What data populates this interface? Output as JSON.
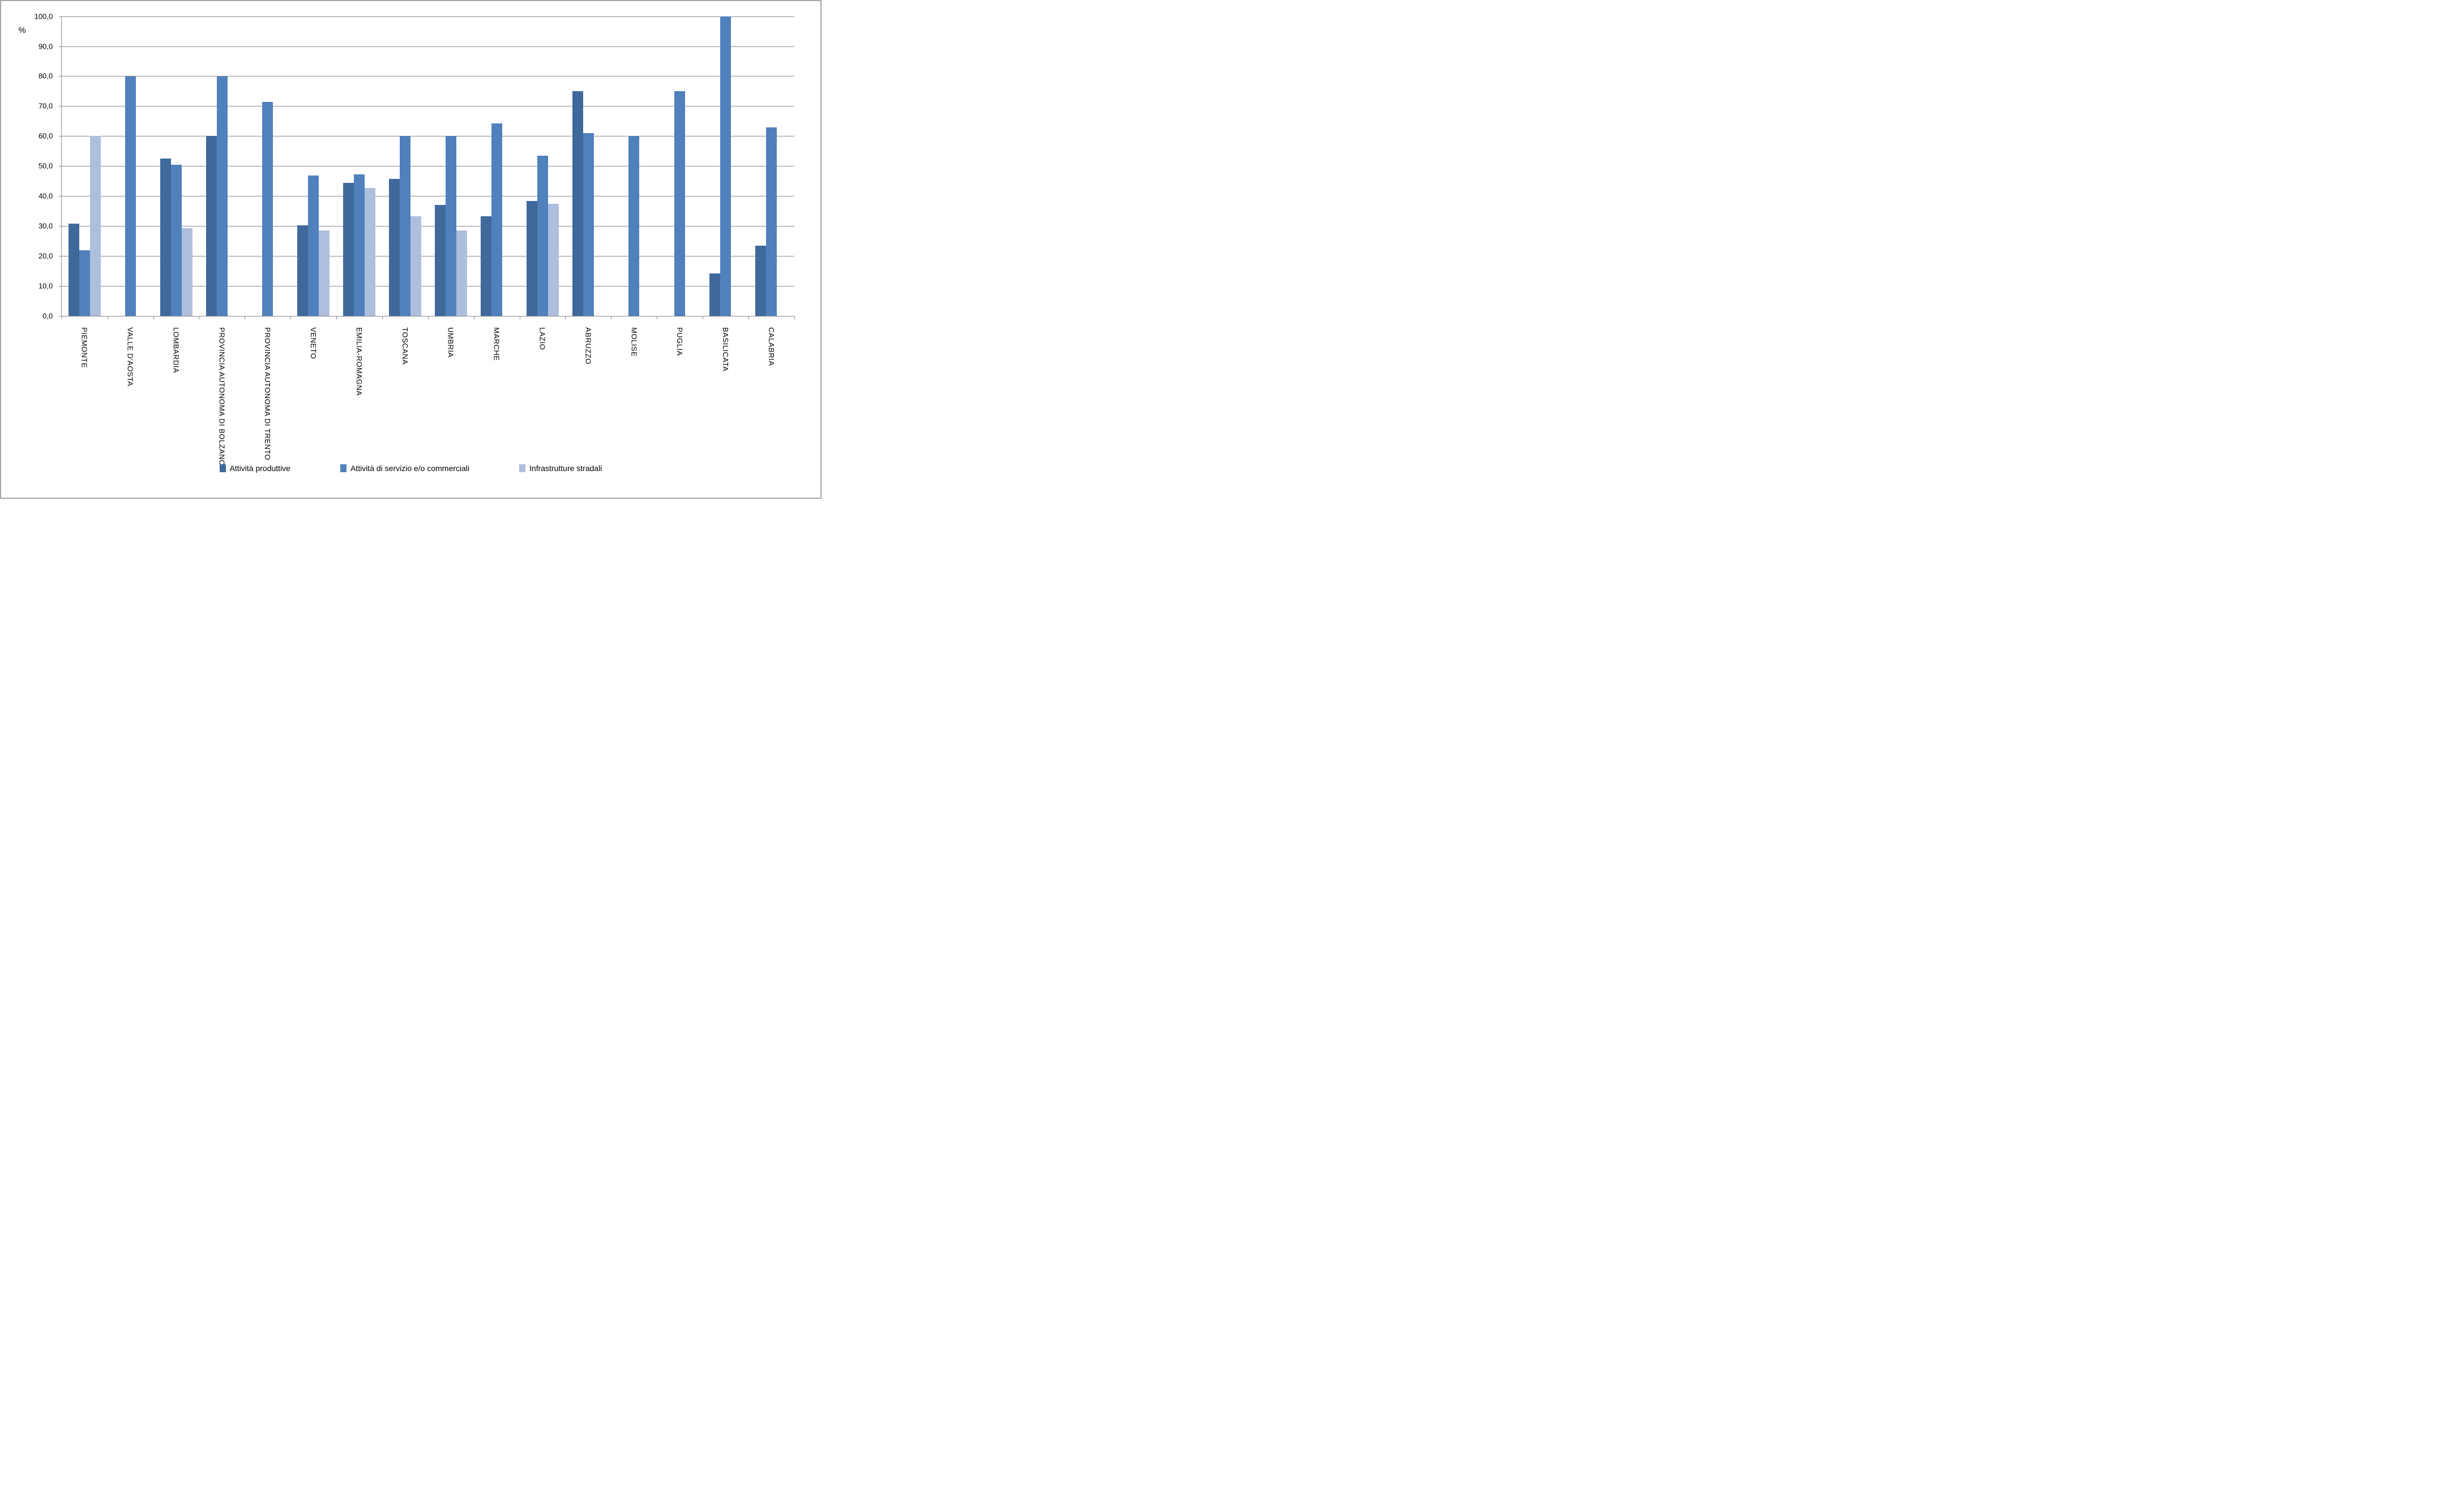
{
  "chart": {
    "unit": "%",
    "y_tick_labels": [
      "100,0",
      "90,0",
      "80,0",
      "70,0",
      "60,0",
      "50,0",
      "40,0",
      "30,0",
      "20,0",
      "10,0",
      "0,0"
    ],
    "colors": {
      "series1": "#3F699B",
      "series2": "#5081BD",
      "series3": "#AEBEDD",
      "gridline": "#8C8C8C",
      "frame_border": "#A6A6A6",
      "background": "#FFFFFF"
    }
  },
  "chart_data": {
    "type": "bar",
    "title": "",
    "xlabel": "",
    "ylabel": "%",
    "ylim": [
      0,
      100
    ],
    "ytick_step": 10,
    "grid": true,
    "legend_position": "bottom",
    "categories": [
      "PIEMONTE",
      "VALLE D'AOSTA",
      "LOMBARDIA",
      "PROVINCIA AUTONOMA DI BOLZANO",
      "PROVINCIA AUTONOMA DI TRENTO",
      "VENETO",
      "EMILIA-ROMAGNA",
      "TOSCANA",
      "UMBRIA",
      "MARCHE",
      "LAZIO",
      "ABRUZZO",
      "MOLISE",
      "PUGLIA",
      "BASILICATA",
      "CALABRIA"
    ],
    "series": [
      {
        "name": "Attività produttive",
        "color": "#3F699B",
        "values": [
          30.8,
          null,
          52.6,
          60.0,
          null,
          30.3,
          44.5,
          45.8,
          37.0,
          33.3,
          38.4,
          75.0,
          null,
          null,
          14.3,
          23.5
        ]
      },
      {
        "name": "Attività di servizio e/o commerciali",
        "color": "#5081BD",
        "values": [
          22.0,
          80.0,
          50.5,
          80.0,
          71.4,
          46.8,
          47.3,
          60.0,
          60.0,
          64.3,
          53.5,
          61.1,
          60.0,
          75.0,
          100.0,
          63.0
        ]
      },
      {
        "name": "Infrastrutture stradali",
        "color": "#AEBEDD",
        "values": [
          60.0,
          null,
          29.3,
          null,
          null,
          28.6,
          42.8,
          33.3,
          28.6,
          null,
          37.4,
          null,
          null,
          null,
          null,
          null
        ]
      }
    ]
  }
}
